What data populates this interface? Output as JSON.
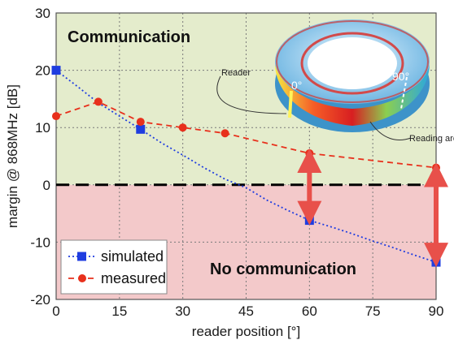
{
  "chart_data": {
    "type": "line",
    "xlabel": "reader position [°]",
    "ylabel": "margin @ 868MHz [dB]",
    "xlim": [
      0,
      90
    ],
    "ylim": [
      -20,
      30
    ],
    "x_ticks": [
      "0",
      "15",
      "30",
      "45",
      "60",
      "75",
      "90"
    ],
    "y_ticks": [
      "-20",
      "-10",
      "0",
      "10",
      "20",
      "30"
    ],
    "grid": true,
    "legend_position": "bottom-left",
    "threshold_y": 0,
    "series": [
      {
        "name": "simulated",
        "color": "#1f3de0",
        "line_style": "dotted",
        "marker": "square",
        "x": [
          0,
          5,
          10,
          15,
          20,
          25,
          30,
          35,
          40,
          45,
          50,
          55,
          60,
          65,
          70,
          75,
          80,
          85,
          90
        ],
        "y": [
          20,
          17.2,
          14.3,
          12,
          9.7,
          7.3,
          5.2,
          3,
          1,
          -0.5,
          -2.7,
          -4.5,
          -6.2,
          -7.3,
          -8.5,
          -9.8,
          -11,
          -12.3,
          -13.5
        ],
        "marker_x": [
          0,
          20,
          60,
          90
        ]
      },
      {
        "name": "measured",
        "color": "#e8301c",
        "line_style": "dashed",
        "marker": "circle",
        "x": [
          0,
          10,
          20,
          30,
          40,
          60,
          90
        ],
        "y": [
          12,
          14.5,
          11,
          10,
          9,
          5.5,
          3
        ]
      }
    ],
    "regions": [
      {
        "label": "Communication",
        "from": 0,
        "to": 30,
        "color": "#e4eccc"
      },
      {
        "label": "No communication",
        "from": -20,
        "to": 0,
        "color": "#f3c9ca"
      }
    ],
    "gap_arrows": [
      {
        "x": 60,
        "from": 5.5,
        "to": -6.2
      },
      {
        "x": 90,
        "from": 3,
        "to": -13.5
      }
    ],
    "inset": {
      "labels": {
        "reader": "Reader",
        "reading_area": "Reading area",
        "angle_start": "0°",
        "angle_end": "90°"
      }
    }
  }
}
